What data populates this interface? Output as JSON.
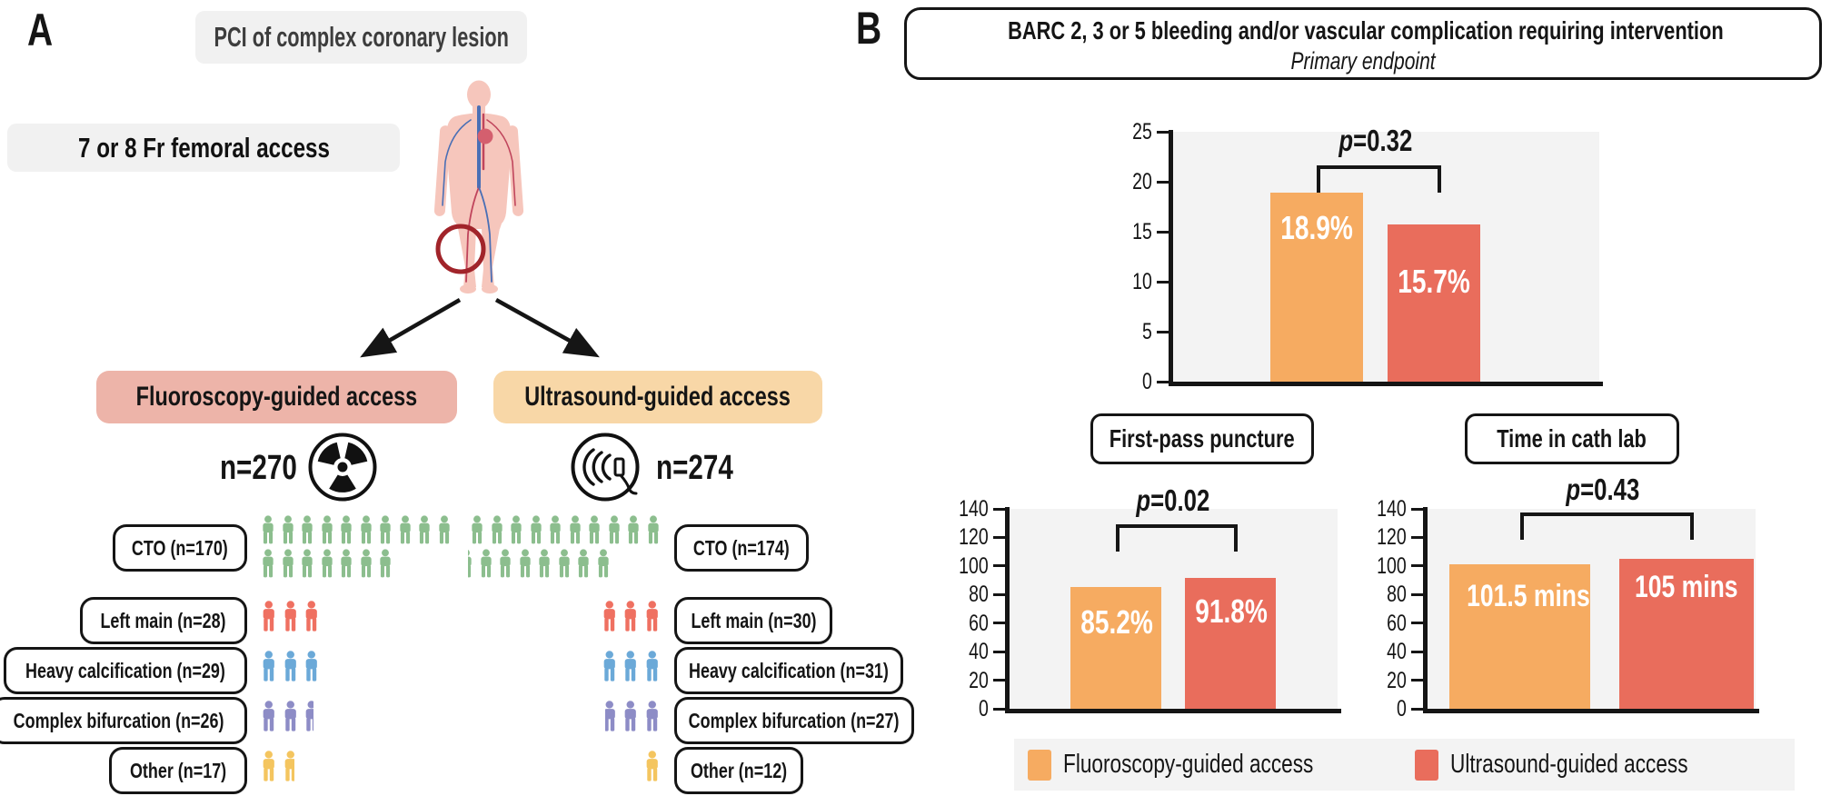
{
  "panel_a": {
    "label": "A",
    "top_box": "PCI of complex coronary lesion",
    "access_box": "7 or 8 Fr femoral access",
    "people_per_icon": 10,
    "row_colors": [
      "#8CBE8E",
      "#EF7061",
      "#6BA9D8",
      "#8D8CC6",
      "#F4C55F"
    ],
    "arms": [
      {
        "id": "fluoroscopy",
        "title": "Fluoroscopy-guided access",
        "n_label": "n=270",
        "icon": "radiation-icon",
        "rows": [
          {
            "label": "CTO (n=170)",
            "n": 170
          },
          {
            "label": "Left main (n=28)",
            "n": 28
          },
          {
            "label": "Heavy calcification (n=29)",
            "n": 29
          },
          {
            "label": "Complex bifurcation (n=26)",
            "n": 26
          },
          {
            "label": "Other (n=17)",
            "n": 17
          }
        ]
      },
      {
        "id": "ultrasound",
        "title": "Ultrasound-guided access",
        "n_label": "n=274",
        "icon": "ultrasound-icon",
        "rows": [
          {
            "label": "CTO (n=174)",
            "n": 174
          },
          {
            "label": "Left main (n=30)",
            "n": 30
          },
          {
            "label": "Heavy calcification (n=31)",
            "n": 31
          },
          {
            "label": "Complex bifurcation (n=27)",
            "n": 27
          },
          {
            "label": "Other (n=12)",
            "n": 12
          }
        ]
      }
    ]
  },
  "panel_b": {
    "label": "B",
    "title_line1": "BARC 2, 3 or 5 bleeding and/or vascular complication requiring intervention",
    "title_line2": "Primary endpoint",
    "subheaders": [
      "First-pass puncture",
      "Time in cath lab"
    ],
    "legend": [
      {
        "label": "Fluoroscopy-guided access",
        "color": "#F6AB61"
      },
      {
        "label": "Ultrasound-guided access",
        "color": "#E96D5C"
      }
    ]
  },
  "chart_data": [
    {
      "type": "bar",
      "title": "BARC 2, 3 or 5 bleeding and/or vascular complication requiring intervention (Primary endpoint)",
      "ylim": [
        0,
        25
      ],
      "ytick_step": 5,
      "grid": false,
      "p_value": "p=0.32",
      "series": [
        {
          "name": "Fluoroscopy-guided access",
          "value": 18.9,
          "label": "18.9%",
          "color": "#F6AB61"
        },
        {
          "name": "Ultrasound-guided access",
          "value": 15.7,
          "label": "15.7%",
          "color": "#E96D5C"
        }
      ]
    },
    {
      "type": "bar",
      "title": "First-pass puncture",
      "ylim": [
        0,
        140
      ],
      "ytick_step": 20,
      "grid": false,
      "p_value": "p=0.02",
      "series": [
        {
          "name": "Fluoroscopy-guided access",
          "value": 85.2,
          "label": "85.2%",
          "color": "#F6AB61"
        },
        {
          "name": "Ultrasound-guided access",
          "value": 91.8,
          "label": "91.8%",
          "color": "#E96D5C"
        }
      ]
    },
    {
      "type": "bar",
      "title": "Time in cath lab",
      "ylim": [
        0,
        140
      ],
      "ytick_step": 20,
      "grid": false,
      "p_value": "p=0.43",
      "series": [
        {
          "name": "Fluoroscopy-guided access",
          "value": 101.5,
          "label": "101.5 mins",
          "color": "#F6AB61"
        },
        {
          "name": "Ultrasound-guided access",
          "value": 105,
          "label": "105 mins",
          "color": "#E96D5C"
        }
      ]
    }
  ]
}
